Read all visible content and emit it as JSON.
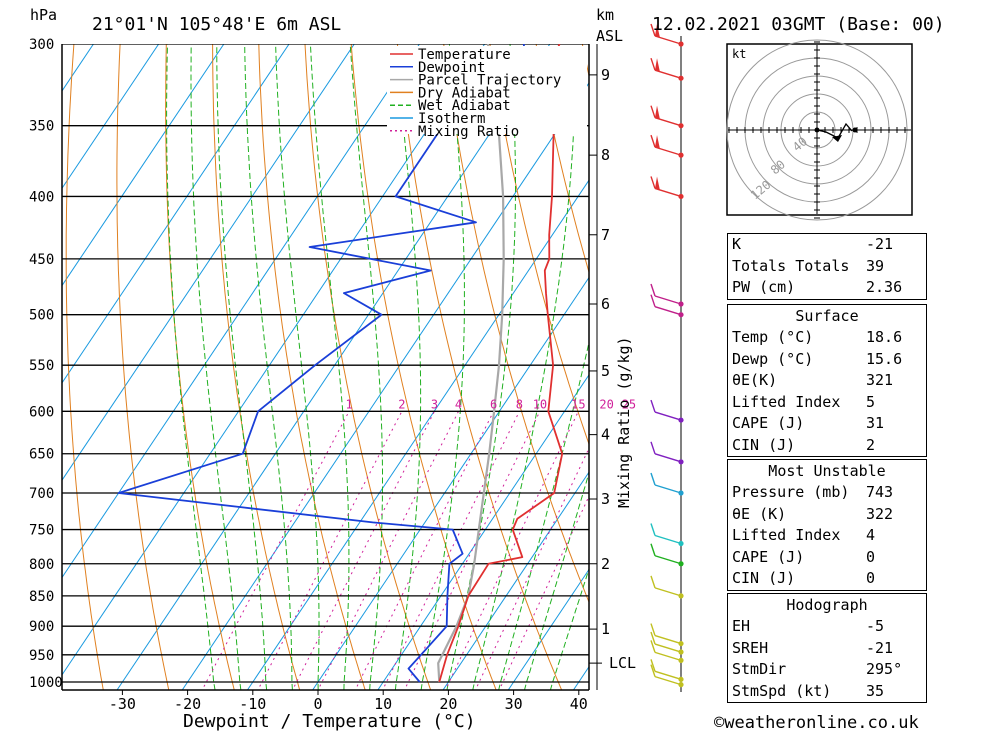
{
  "header": {
    "hpa_label": "hPa",
    "km_label": "km",
    "asl_label": "ASL",
    "location": "21°01'N  105°48'E  6m  ASL",
    "datetime": "12.02.2021  03GMT  (Base: 00)"
  },
  "chart_data": {
    "type": "skew-t",
    "xlabel": "Dewpoint / Temperature (°C)",
    "ylabel_right": "Mixing Ratio (g/kg)",
    "x_ticks": [
      -30,
      -20,
      -10,
      0,
      10,
      20,
      30,
      40
    ],
    "pressure_levels": [
      300,
      350,
      400,
      450,
      500,
      550,
      600,
      650,
      700,
      750,
      800,
      850,
      900,
      950,
      1000
    ],
    "km_ticks": [
      {
        "label": "1",
        "p": 905
      },
      {
        "label": "2",
        "p": 800
      },
      {
        "label": "3",
        "p": 708
      },
      {
        "label": "4",
        "p": 627
      },
      {
        "label": "5",
        "p": 556
      },
      {
        "label": "6",
        "p": 490
      },
      {
        "label": "7",
        "p": 430
      },
      {
        "label": "8",
        "p": 370
      },
      {
        "label": "9",
        "p": 318
      }
    ],
    "lcl_label": "LCL",
    "lcl_p": 965,
    "mixing_ratio_labels": [
      "1",
      "2",
      "3",
      "4",
      "6",
      "8",
      "10",
      "15",
      "20",
      "25"
    ],
    "legend": [
      "Temperature",
      "Dewpoint",
      "Parcel Trajectory",
      "Dry Adiabat",
      "Wet Adiabat",
      "Isotherm",
      "Mixing Ratio"
    ],
    "colors": {
      "temperature": "#e03030",
      "dewpoint": "#1a3fd8",
      "parcel": "#a8a8a8",
      "dry_adiabat": "#e08020",
      "wet_adiabat": "#20b020",
      "isotherm": "#1a9ae0",
      "mixing_ratio": "#d0209a"
    },
    "temperature": [
      [
        1000,
        18.6
      ],
      [
        950,
        17.0
      ],
      [
        900,
        15.8
      ],
      [
        850,
        14.2
      ],
      [
        800,
        14.0
      ],
      [
        790,
        18.5
      ],
      [
        750,
        14.2
      ],
      [
        735,
        13.8
      ],
      [
        700,
        16.8
      ],
      [
        650,
        14.0
      ],
      [
        600,
        7.5
      ],
      [
        550,
        3.5
      ],
      [
        500,
        -2.5
      ],
      [
        480,
        -5.0
      ],
      [
        460,
        -7.5
      ],
      [
        450,
        -8.0
      ],
      [
        430,
        -10.5
      ],
      [
        400,
        -14.0
      ],
      [
        350,
        -21.0
      ],
      [
        310,
        -28.0
      ],
      [
        300,
        -28.5
      ]
    ],
    "dewpoint": [
      [
        1000,
        15.6
      ],
      [
        975,
        12.5
      ],
      [
        950,
        13.0
      ],
      [
        900,
        14.0
      ],
      [
        850,
        11.0
      ],
      [
        800,
        8.0
      ],
      [
        785,
        9.0
      ],
      [
        750,
        5.0
      ],
      [
        740,
        -8.0
      ],
      [
        700,
        -50.0
      ],
      [
        650,
        -35.0
      ],
      [
        600,
        -37.0
      ],
      [
        550,
        -33.0
      ],
      [
        500,
        -28.0
      ],
      [
        480,
        -36.0
      ],
      [
        460,
        -25.0
      ],
      [
        440,
        -46.0
      ],
      [
        420,
        -23.0
      ],
      [
        400,
        -38.0
      ],
      [
        330,
        -38.0
      ],
      [
        310,
        -32.0
      ],
      [
        300,
        -34.0
      ]
    ],
    "parcel": [
      [
        1000,
        18.6
      ],
      [
        965,
        16.5
      ],
      [
        900,
        15.5
      ],
      [
        850,
        14.2
      ],
      [
        800,
        11.8
      ],
      [
        750,
        9.0
      ],
      [
        700,
        6.0
      ],
      [
        650,
        2.8
      ],
      [
        600,
        -0.8
      ],
      [
        550,
        -4.8
      ],
      [
        500,
        -9.5
      ],
      [
        450,
        -15.0
      ],
      [
        400,
        -21.5
      ],
      [
        350,
        -29.5
      ],
      [
        300,
        -39.5
      ]
    ],
    "wind_profile": [
      {
        "p": 300,
        "color": "#e03030"
      },
      {
        "p": 320,
        "color": "#e03030"
      },
      {
        "p": 350,
        "color": "#e03030"
      },
      {
        "p": 370,
        "color": "#e03030"
      },
      {
        "p": 400,
        "color": "#e03030"
      },
      {
        "p": 490,
        "color": "#c0208a"
      },
      {
        "p": 500,
        "color": "#c0208a"
      },
      {
        "p": 610,
        "color": "#8020c0"
      },
      {
        "p": 660,
        "color": "#8020c0"
      },
      {
        "p": 700,
        "color": "#20a0d0"
      },
      {
        "p": 770,
        "color": "#20c0c0"
      },
      {
        "p": 800,
        "color": "#20b020"
      },
      {
        "p": 850,
        "color": "#c0c020"
      },
      {
        "p": 930,
        "color": "#c0c020"
      },
      {
        "p": 945,
        "color": "#c0c020"
      },
      {
        "p": 960,
        "color": "#c0c020"
      },
      {
        "p": 995,
        "color": "#c0c020"
      },
      {
        "p": 1010,
        "color": "#c0c020"
      }
    ]
  },
  "hodograph": {
    "unit": "kt",
    "ring_labels": [
      "40",
      "80",
      "120"
    ]
  },
  "indices": [
    {
      "label": "K",
      "value": "-21"
    },
    {
      "label": "Totals Totals",
      "value": "39"
    },
    {
      "label": "PW (cm)",
      "value": "2.36"
    }
  ],
  "surface": {
    "title": "Surface",
    "rows": [
      {
        "label": "Temp (°C)",
        "value": "18.6"
      },
      {
        "label": "Dewp (°C)",
        "value": "15.6"
      },
      {
        "label": "θE(K)",
        "value": "321"
      },
      {
        "label": "Lifted Index",
        "value": "5"
      },
      {
        "label": "CAPE (J)",
        "value": "31"
      },
      {
        "label": "CIN (J)",
        "value": "2"
      }
    ]
  },
  "most_unstable": {
    "title": "Most Unstable",
    "rows": [
      {
        "label": "Pressure (mb)",
        "value": "743"
      },
      {
        "label": "θE (K)",
        "value": "322"
      },
      {
        "label": "Lifted Index",
        "value": "4"
      },
      {
        "label": "CAPE (J)",
        "value": "0"
      },
      {
        "label": "CIN (J)",
        "value": "0"
      }
    ]
  },
  "hodo_table": {
    "title": "Hodograph",
    "rows": [
      {
        "label": "EH",
        "value": "-5"
      },
      {
        "label": "SREH",
        "value": "-21"
      },
      {
        "label": "StmDir",
        "value": "295°"
      },
      {
        "label": "StmSpd (kt)",
        "value": "35"
      }
    ]
  },
  "footer": {
    "copyright": "©weatheronline.co.uk"
  }
}
